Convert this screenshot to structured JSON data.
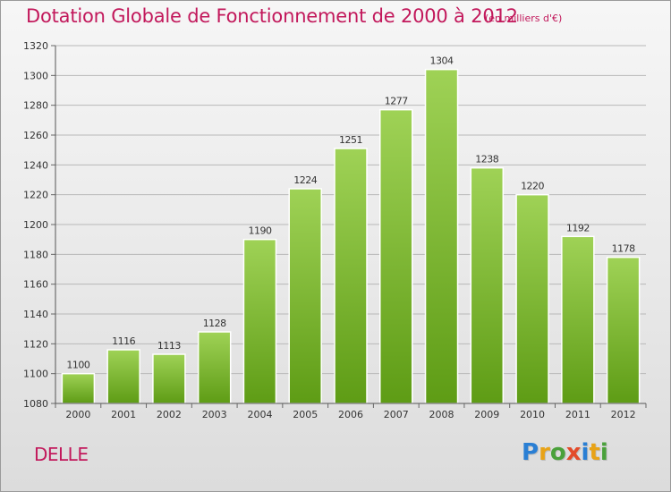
{
  "header": {
    "title": "Dotation Globale de Fonctionnement de 2000 à 2012",
    "subtitle": "(en milliers d'€)"
  },
  "footer": {
    "commune": "DELLE",
    "logo": {
      "letters": [
        "P",
        "r",
        "o",
        "x",
        "i",
        "t",
        "i"
      ],
      "colors": [
        "#2a7fd4",
        "#e8a317",
        "#4aa13b",
        "#e34b2a",
        "#2a7fd4",
        "#e8a317",
        "#4aa13b"
      ]
    }
  },
  "colors": {
    "title": "#c2185b",
    "bar_top": "#9fd256",
    "bar_bottom": "#5e9c15",
    "grid": "#b8b8b8"
  },
  "chart_data": {
    "type": "bar",
    "title": "Dotation Globale de Fonctionnement de 2000 à 2012",
    "subtitle": "(en milliers d'€)",
    "categories": [
      "2000",
      "2001",
      "2002",
      "2003",
      "2004",
      "2005",
      "2006",
      "2007",
      "2008",
      "2009",
      "2010",
      "2011",
      "2012"
    ],
    "values": [
      1100,
      1116,
      1113,
      1128,
      1190,
      1224,
      1251,
      1277,
      1304,
      1238,
      1220,
      1192,
      1178
    ],
    "ylim": [
      1080,
      1320
    ],
    "yticks": [
      1080,
      1100,
      1120,
      1140,
      1160,
      1180,
      1200,
      1220,
      1240,
      1260,
      1280,
      1300,
      1320
    ],
    "grid": true,
    "data_labels": true
  }
}
